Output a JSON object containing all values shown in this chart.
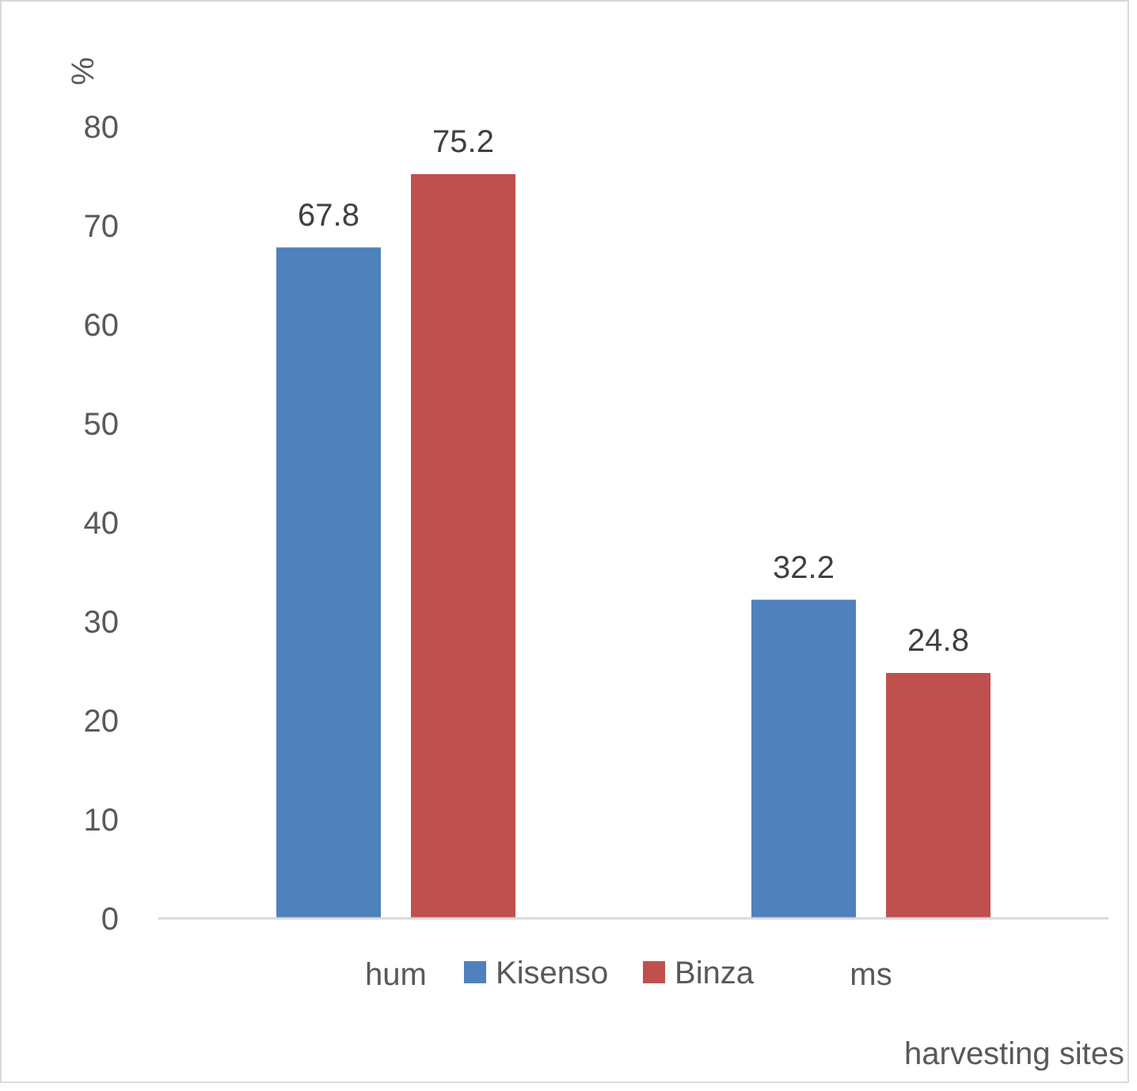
{
  "chart_data": {
    "type": "bar",
    "ylabel": "%",
    "xlabel": "harvesting sites",
    "categories": [
      "hum",
      "ms"
    ],
    "series": [
      {
        "name": "Kisenso",
        "color": "#4f81bd",
        "values": [
          67.8,
          32.2
        ]
      },
      {
        "name": "Binza",
        "color": "#c0504d",
        "values": [
          75.2,
          24.8
        ]
      }
    ],
    "ylim": [
      0,
      80
    ],
    "yticks": [
      0,
      10,
      20,
      30,
      40,
      50,
      60,
      70,
      80
    ],
    "data_labels": true,
    "legend": "bottom",
    "grid": false
  }
}
